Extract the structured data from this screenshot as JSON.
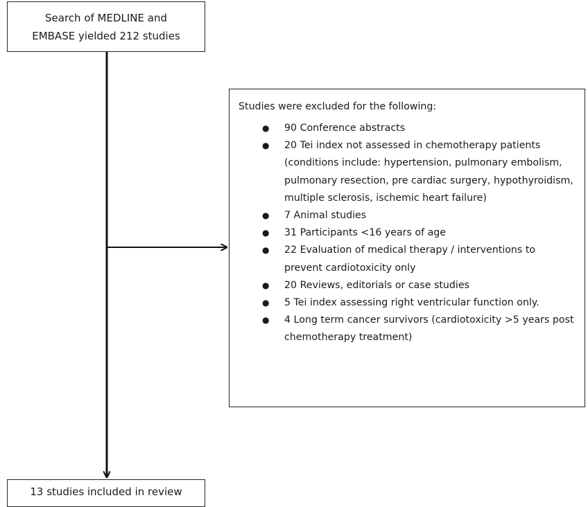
{
  "top_box": {
    "lines": [
      "Search of MEDLINE and",
      "EMBASE yielded 212 studies"
    ]
  },
  "exclusion_box": {
    "heading": "Studies were excluded for the following:",
    "items": [
      "90 Conference abstracts",
      "20 Tei index not assessed in chemotherapy patients (conditions include: hypertension, pulmonary embolism, pulmonary resection, pre cardiac surgery, hypothyroidism, multiple sclerosis, ischemic heart failure)",
      "7 Animal studies",
      "31 Participants <16 years of age",
      "22 Evaluation of medical therapy / interventions to prevent cardiotoxicity only",
      "20 Reviews, editorials or case studies",
      "5 Tei index assessing right ventricular function only.",
      "4 Long term cancer survivors (cardiotoxicity >5 years post chemotherapy treatment)"
    ]
  },
  "bottom_box": {
    "label": "13 studies included in review"
  },
  "colors": {
    "line": "#111111",
    "border": "#222222",
    "text": "#1a1a1a"
  }
}
